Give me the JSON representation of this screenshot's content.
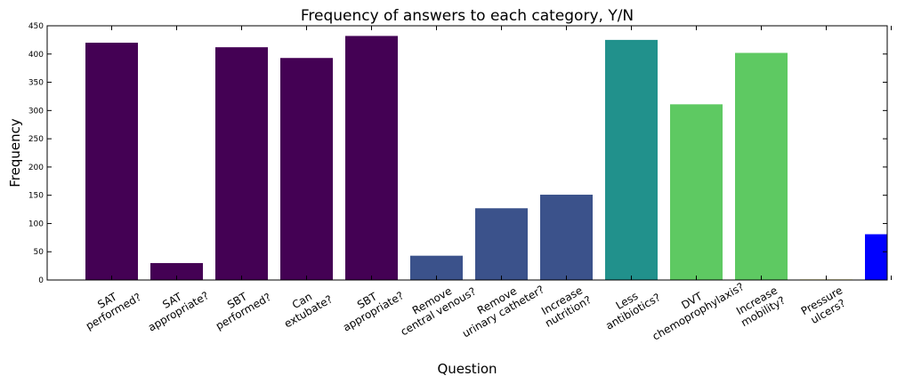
{
  "chart_data": {
    "type": "bar",
    "title": "Frequency of answers to each category, Y/N",
    "xlabel": "Question",
    "ylabel": "Frequency",
    "ylim": [
      0,
      450
    ],
    "yticks": [
      0,
      50,
      100,
      150,
      200,
      250,
      300,
      350,
      400,
      450
    ],
    "grid": false,
    "categories": [
      [
        "SAT",
        "performed?"
      ],
      [
        "SAT",
        "appropriate?"
      ],
      [
        "SBT",
        "performed?"
      ],
      [
        "Can",
        "extubate?"
      ],
      [
        "SBT",
        "appropriate?"
      ],
      [
        "Remove",
        "central venous?"
      ],
      [
        "Remove",
        "urinary catheter?"
      ],
      [
        "Increase",
        "nutrition?"
      ],
      [
        "Less",
        "antibiotics?"
      ],
      [
        "DVT",
        "chemoprophylaxis?"
      ],
      [
        "Increase",
        "mobility?"
      ],
      [
        "Pressure",
        "ulcers?"
      ],
      [
        "",
        ""
      ]
    ],
    "values": [
      420,
      30,
      412,
      393,
      432,
      43,
      127,
      151,
      425,
      311,
      402,
      1,
      81
    ],
    "colors": [
      "#440154",
      "#440154",
      "#440154",
      "#440154",
      "#440154",
      "#3b528b",
      "#3b528b",
      "#3b528b",
      "#21918c",
      "#5ec962",
      "#5ec962",
      "#fde725",
      "#0000ff"
    ]
  }
}
